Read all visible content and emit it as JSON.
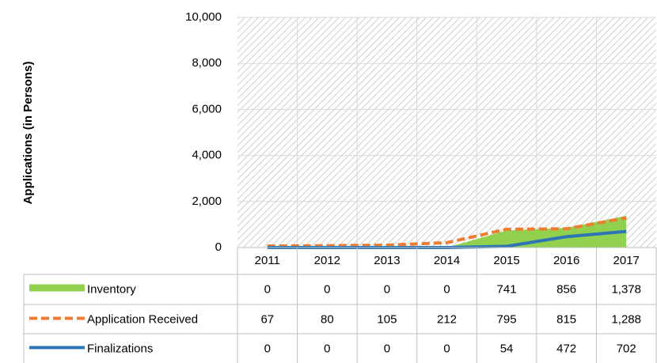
{
  "chart_data": {
    "type": "line",
    "ylabel": "Applications (in Persons)",
    "categories": [
      "2011",
      "2012",
      "2013",
      "2014",
      "2015",
      "2016",
      "2017"
    ],
    "ylim": [
      0,
      10000
    ],
    "yticks": [
      0,
      {
        "value": 2000,
        "label": "2,000"
      },
      {
        "value": 4000,
        "label": "4,000"
      },
      {
        "value": 6000,
        "label": "6,000"
      },
      {
        "value": 8000,
        "label": "8,000"
      },
      {
        "value": 10000,
        "label": "10,000"
      }
    ],
    "grid": true,
    "series": [
      {
        "name": "Inventory",
        "color": "#92d050",
        "kind": "area",
        "values": [
          0,
          0,
          0,
          0,
          741,
          856,
          1378
        ],
        "value_labels": [
          "0",
          "0",
          "0",
          "0",
          "741",
          "856",
          "1,378"
        ]
      },
      {
        "name": "Application Received",
        "color": "#ed7d31",
        "kind": "line",
        "dashed": true,
        "values": [
          67,
          80,
          105,
          212,
          795,
          815,
          1288
        ],
        "value_labels": [
          "67",
          "80",
          "105",
          "212",
          "795",
          "815",
          "1,288"
        ]
      },
      {
        "name": "Finalizations",
        "color": "#2e75b6",
        "kind": "line",
        "values": [
          0,
          0,
          0,
          0,
          54,
          472,
          702
        ],
        "value_labels": [
          "0",
          "0",
          "0",
          "0",
          "54",
          "472",
          "702"
        ]
      }
    ]
  }
}
